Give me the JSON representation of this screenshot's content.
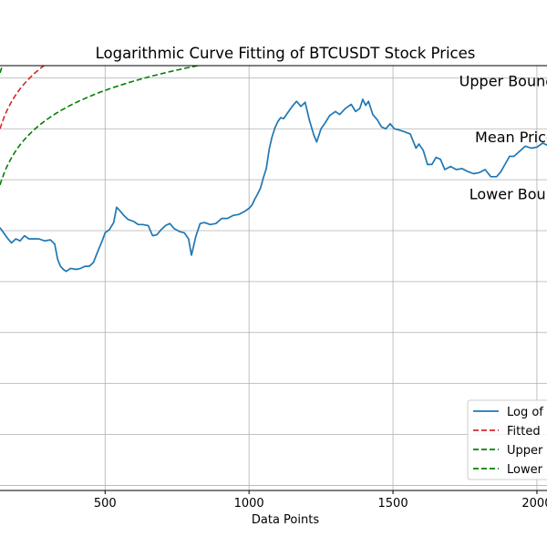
{
  "chart_data": {
    "type": "line",
    "title": "Logarithmic Curve Fitting of BTCUSDT Stock Prices",
    "xlabel": "Data Points",
    "ylabel": "",
    "xlim": [
      135,
      2035
    ],
    "ylim": [
      7.45,
      11.62
    ],
    "xticks": [
      500,
      1000,
      1500,
      2000
    ],
    "xtick_labels": [
      "500",
      "1000",
      "1500",
      "2000"
    ],
    "yticks": [
      7.5,
      8.0,
      8.5,
      9.0,
      9.5,
      10.0,
      10.5,
      11.0,
      11.5
    ],
    "grid": true,
    "legend": {
      "location": "bottom-right",
      "entries": [
        "Log of",
        "Fitted",
        "Upper",
        "Lower"
      ]
    },
    "annotations": [
      {
        "text": "Upper Bound",
        "x": 1730,
        "y": 11.42
      },
      {
        "text": "Mean Price",
        "x": 1785,
        "y": 10.87
      },
      {
        "text": "Lower Bound",
        "x": 1765,
        "y": 10.31
      }
    ],
    "fit_model": {
      "a": 9.4,
      "b": 0.42,
      "c": -90,
      "band": 0.55
    },
    "series": [
      {
        "name": "Log of",
        "color": "#1f77b4",
        "style": "solid",
        "x": [
          135,
          145,
          160,
          175,
          190,
          205,
          220,
          235,
          250,
          270,
          290,
          310,
          325,
          335,
          345,
          355,
          365,
          380,
          400,
          415,
          430,
          445,
          460,
          475,
          490,
          500,
          515,
          530,
          540,
          550,
          565,
          580,
          600,
          615,
          630,
          650,
          665,
          680,
          695,
          710,
          725,
          740,
          760,
          775,
          790,
          800,
          805,
          815,
          830,
          845,
          865,
          885,
          905,
          925,
          945,
          965,
          985,
          1000,
          1010,
          1020,
          1030,
          1040,
          1050,
          1060,
          1070,
          1080,
          1090,
          1100,
          1110,
          1120,
          1135,
          1150,
          1165,
          1180,
          1195,
          1210,
          1225,
          1235,
          1250,
          1265,
          1280,
          1300,
          1315,
          1335,
          1355,
          1370,
          1385,
          1395,
          1405,
          1415,
          1430,
          1445,
          1460,
          1475,
          1490,
          1505,
          1520,
          1540,
          1560,
          1580,
          1590,
          1605,
          1620,
          1635,
          1650,
          1665,
          1680,
          1700,
          1720,
          1740,
          1760,
          1780,
          1800,
          1820,
          1840,
          1860,
          1875,
          1885,
          1895,
          1905,
          1920,
          1940,
          1960,
          1980,
          2000,
          2020,
          2035
        ],
        "y": [
          10.03,
          9.99,
          9.93,
          9.88,
          9.92,
          9.9,
          9.95,
          9.92,
          9.92,
          9.92,
          9.9,
          9.91,
          9.87,
          9.72,
          9.65,
          9.62,
          9.6,
          9.63,
          9.62,
          9.63,
          9.65,
          9.65,
          9.69,
          9.8,
          9.9,
          9.98,
          10.01,
          10.08,
          10.23,
          10.2,
          10.15,
          10.11,
          10.09,
          10.06,
          10.06,
          10.05,
          9.95,
          9.96,
          10.01,
          10.05,
          10.07,
          10.02,
          9.99,
          9.98,
          9.92,
          9.76,
          9.82,
          9.94,
          10.07,
          10.08,
          10.06,
          10.07,
          10.12,
          10.12,
          10.15,
          10.16,
          10.19,
          10.22,
          10.25,
          10.31,
          10.36,
          10.42,
          10.52,
          10.61,
          10.8,
          10.92,
          11.01,
          11.07,
          11.11,
          11.1,
          11.16,
          11.22,
          11.27,
          11.22,
          11.26,
          11.08,
          10.94,
          10.87,
          11.0,
          11.06,
          11.13,
          11.17,
          11.14,
          11.2,
          11.24,
          11.17,
          11.2,
          11.29,
          11.23,
          11.27,
          11.14,
          11.09,
          11.02,
          11.0,
          11.05,
          11.0,
          10.99,
          10.97,
          10.95,
          10.81,
          10.85,
          10.79,
          10.65,
          10.65,
          10.72,
          10.7,
          10.6,
          10.63,
          10.6,
          10.61,
          10.58,
          10.56,
          10.57,
          10.6,
          10.53,
          10.53,
          10.58,
          10.63,
          10.68,
          10.73,
          10.73,
          10.78,
          10.83,
          10.81,
          10.82,
          10.86,
          10.84
        ]
      },
      {
        "name": "Fitted",
        "color": "#d62728",
        "style": "dashed",
        "model": "mean"
      },
      {
        "name": "Upper",
        "color": "#008000",
        "style": "dashed",
        "model": "upper"
      },
      {
        "name": "Lower",
        "color": "#008000",
        "style": "dashed",
        "model": "lower"
      }
    ]
  }
}
